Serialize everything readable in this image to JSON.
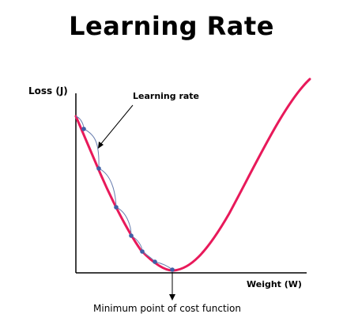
{
  "title": "Learning Rate",
  "y_axis_label": "Loss (J)",
  "x_axis_label": "Weight (W)",
  "annotation_learning_rate": "Learning rate",
  "annotation_minimum": "Minimum point of cost function",
  "colors": {
    "cost_curve": "#e8195a",
    "step_path": "#6a7fb0",
    "step_point": "#3f5fa6",
    "axes": "#000000"
  }
}
